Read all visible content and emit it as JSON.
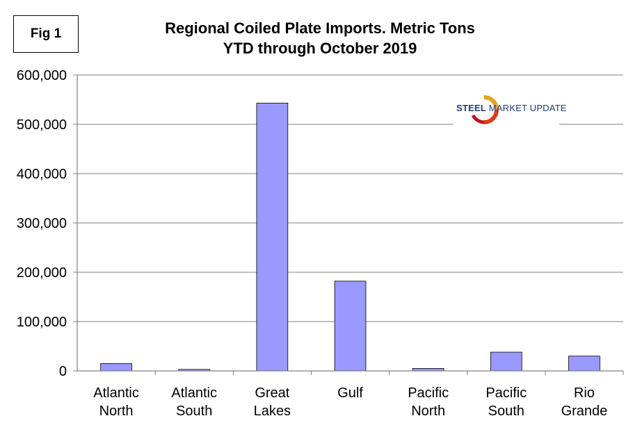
{
  "figure_label": "Fig 1",
  "logo": {
    "text_bold": "STEEL",
    "text_rest": " MARKET UPDATE"
  },
  "chart_data": {
    "type": "bar",
    "title": "Regional Coiled Plate Imports. Metric Tons",
    "subtitle": "YTD through October 2019",
    "xlabel": "",
    "ylabel": "",
    "ylim": [
      0,
      600000
    ],
    "yticks": [
      0,
      100000,
      200000,
      300000,
      400000,
      500000,
      600000
    ],
    "ytick_labels": [
      "0",
      "100,000",
      "200,000",
      "300,000",
      "400,000",
      "500,000",
      "600,000"
    ],
    "categories": [
      [
        "Atlantic",
        "North"
      ],
      [
        "Atlantic",
        "South"
      ],
      [
        "Great",
        "Lakes"
      ],
      [
        "Gulf"
      ],
      [
        "Pacific",
        "North"
      ],
      [
        "Pacific",
        "South"
      ],
      [
        "Rio",
        "Grande"
      ]
    ],
    "values": [
      15000,
      3000,
      543000,
      182000,
      5000,
      38000,
      30000
    ],
    "bar_color": "#9999ff",
    "grid": true,
    "legend": "none"
  }
}
